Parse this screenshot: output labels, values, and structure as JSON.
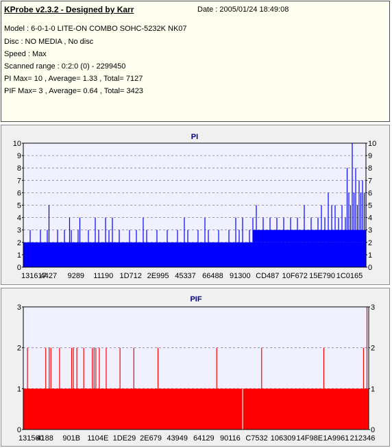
{
  "header": {
    "app_title": "KProbe v2.3.2 - Designed by Karr",
    "date_line": "Date : 2005/01/24 18:49:08",
    "lines": [
      "Model : 6-0-1-0 LITE-ON COMBO SOHC-5232K NK07",
      "Disc : NO MEDIA , No disc",
      "Speed : Max",
      "Scanned range : 0:2:0 (0) - 2299450",
      "PI Max= 10 , Average= 1.33 , Total= 7127",
      "PIF Max= 3 , Average= 0.64 , Total= 3423"
    ]
  },
  "chart_data": [
    {
      "type": "bar",
      "title": "PI",
      "series_color": "#0000ff",
      "background": "#f0f0ff",
      "grid": "dashed horizontal",
      "ylim": [
        0,
        10
      ],
      "yticks": [
        0,
        1,
        2,
        3,
        4,
        5,
        6,
        7,
        8,
        9,
        10
      ],
      "xtick_labels": [
        "131617",
        "4427",
        "9289",
        "11190",
        "1D712",
        "2E995",
        "45337",
        "66488",
        "91300",
        "CD487",
        "10F672",
        "15E790",
        "1C0165"
      ],
      "baseline": 2,
      "max": 10,
      "average": 1.33,
      "total": 7127,
      "spikes": [
        {
          "x": 0.02,
          "v": 3
        },
        {
          "x": 0.05,
          "v": 3
        },
        {
          "x": 0.07,
          "v": 3
        },
        {
          "x": 0.1,
          "v": 3
        },
        {
          "x": 0.12,
          "v": 3
        },
        {
          "x": 0.14,
          "v": 3
        },
        {
          "x": 0.16,
          "v": 3
        },
        {
          "x": 0.19,
          "v": 3
        },
        {
          "x": 0.22,
          "v": 3
        },
        {
          "x": 0.25,
          "v": 3
        },
        {
          "x": 0.28,
          "v": 3
        },
        {
          "x": 0.31,
          "v": 3
        },
        {
          "x": 0.33,
          "v": 3
        },
        {
          "x": 0.36,
          "v": 3
        },
        {
          "x": 0.39,
          "v": 3
        },
        {
          "x": 0.42,
          "v": 3
        },
        {
          "x": 0.45,
          "v": 3
        },
        {
          "x": 0.48,
          "v": 3
        },
        {
          "x": 0.51,
          "v": 3
        },
        {
          "x": 0.54,
          "v": 3
        },
        {
          "x": 0.57,
          "v": 3
        },
        {
          "x": 0.6,
          "v": 3
        },
        {
          "x": 0.63,
          "v": 3
        },
        {
          "x": 0.66,
          "v": 3
        },
        {
          "x": 0.075,
          "v": 5
        },
        {
          "x": 0.135,
          "v": 4
        },
        {
          "x": 0.165,
          "v": 4
        },
        {
          "x": 0.21,
          "v": 4
        },
        {
          "x": 0.24,
          "v": 4
        },
        {
          "x": 0.26,
          "v": 4
        },
        {
          "x": 0.35,
          "v": 4
        },
        {
          "x": 0.47,
          "v": 4
        },
        {
          "x": 0.53,
          "v": 4
        },
        {
          "x": 0.62,
          "v": 4
        },
        {
          "x": 0.64,
          "v": 4
        },
        {
          "x": 0.2,
          "v": 1
        },
        {
          "x": 0.4,
          "v": 1
        },
        {
          "x": 0.7,
          "v": 1
        },
        {
          "x": 0.67,
          "v": 4
        },
        {
          "x": 0.68,
          "v": 5
        },
        {
          "x": 0.69,
          "v": 3
        },
        {
          "x": 0.7,
          "v": 4
        },
        {
          "x": 0.71,
          "v": 3
        },
        {
          "x": 0.72,
          "v": 4
        },
        {
          "x": 0.73,
          "v": 3
        },
        {
          "x": 0.74,
          "v": 4
        },
        {
          "x": 0.75,
          "v": 3
        },
        {
          "x": 0.76,
          "v": 4
        },
        {
          "x": 0.77,
          "v": 3
        },
        {
          "x": 0.78,
          "v": 4
        },
        {
          "x": 0.79,
          "v": 3
        },
        {
          "x": 0.8,
          "v": 4
        },
        {
          "x": 0.81,
          "v": 3
        },
        {
          "x": 0.82,
          "v": 5
        },
        {
          "x": 0.83,
          "v": 3
        },
        {
          "x": 0.84,
          "v": 4
        },
        {
          "x": 0.85,
          "v": 3
        },
        {
          "x": 0.86,
          "v": 4
        },
        {
          "x": 0.87,
          "v": 5
        },
        {
          "x": 0.88,
          "v": 4
        },
        {
          "x": 0.89,
          "v": 6
        },
        {
          "x": 0.9,
          "v": 5
        },
        {
          "x": 0.91,
          "v": 5
        },
        {
          "x": 0.92,
          "v": 4
        },
        {
          "x": 0.93,
          "v": 5
        },
        {
          "x": 0.94,
          "v": 4
        },
        {
          "x": 0.945,
          "v": 8
        },
        {
          "x": 0.95,
          "v": 6
        },
        {
          "x": 0.955,
          "v": 5
        },
        {
          "x": 0.96,
          "v": 10
        },
        {
          "x": 0.965,
          "v": 6
        },
        {
          "x": 0.97,
          "v": 8
        },
        {
          "x": 0.975,
          "v": 5
        },
        {
          "x": 0.98,
          "v": 7
        },
        {
          "x": 0.985,
          "v": 6
        },
        {
          "x": 0.99,
          "v": 7
        },
        {
          "x": 0.995,
          "v": 6
        },
        {
          "x": 1.0,
          "v": 7
        }
      ],
      "tail_start": 0.67,
      "tail_level": 3
    },
    {
      "type": "bar",
      "title": "PIF",
      "series_color": "#ff0000",
      "background": "#f0f0ff",
      "grid": "dashed horizontal",
      "ylim": [
        0,
        3
      ],
      "yticks": [
        0,
        1,
        2,
        3
      ],
      "xtick_labels": [
        "131560",
        "4188",
        "901B",
        "1104E",
        "1DE29",
        "2E679",
        "43949",
        "64129",
        "90116",
        "C7532",
        "106309",
        "14F98E",
        "1A9961",
        "212346"
      ],
      "baseline": 1,
      "max": 3,
      "average": 0.64,
      "total": 3423,
      "spikes": [
        {
          "x": 0.012,
          "v": 2
        },
        {
          "x": 0.065,
          "v": 2
        },
        {
          "x": 0.075,
          "v": 2
        },
        {
          "x": 0.08,
          "v": 2
        },
        {
          "x": 0.105,
          "v": 2
        },
        {
          "x": 0.14,
          "v": 2
        },
        {
          "x": 0.145,
          "v": 2
        },
        {
          "x": 0.155,
          "v": 2
        },
        {
          "x": 0.175,
          "v": 2
        },
        {
          "x": 0.2,
          "v": 2
        },
        {
          "x": 0.205,
          "v": 2
        },
        {
          "x": 0.21,
          "v": 2
        },
        {
          "x": 0.22,
          "v": 2
        },
        {
          "x": 0.24,
          "v": 2
        },
        {
          "x": 0.28,
          "v": 2
        },
        {
          "x": 0.32,
          "v": 2
        },
        {
          "x": 0.39,
          "v": 2
        },
        {
          "x": 0.56,
          "v": 2
        },
        {
          "x": 0.69,
          "v": 2
        },
        {
          "x": 0.87,
          "v": 2
        },
        {
          "x": 0.985,
          "v": 2
        },
        {
          "x": 0.995,
          "v": 3
        }
      ],
      "gaps": [
        {
          "x": 0.635
        }
      ]
    }
  ]
}
